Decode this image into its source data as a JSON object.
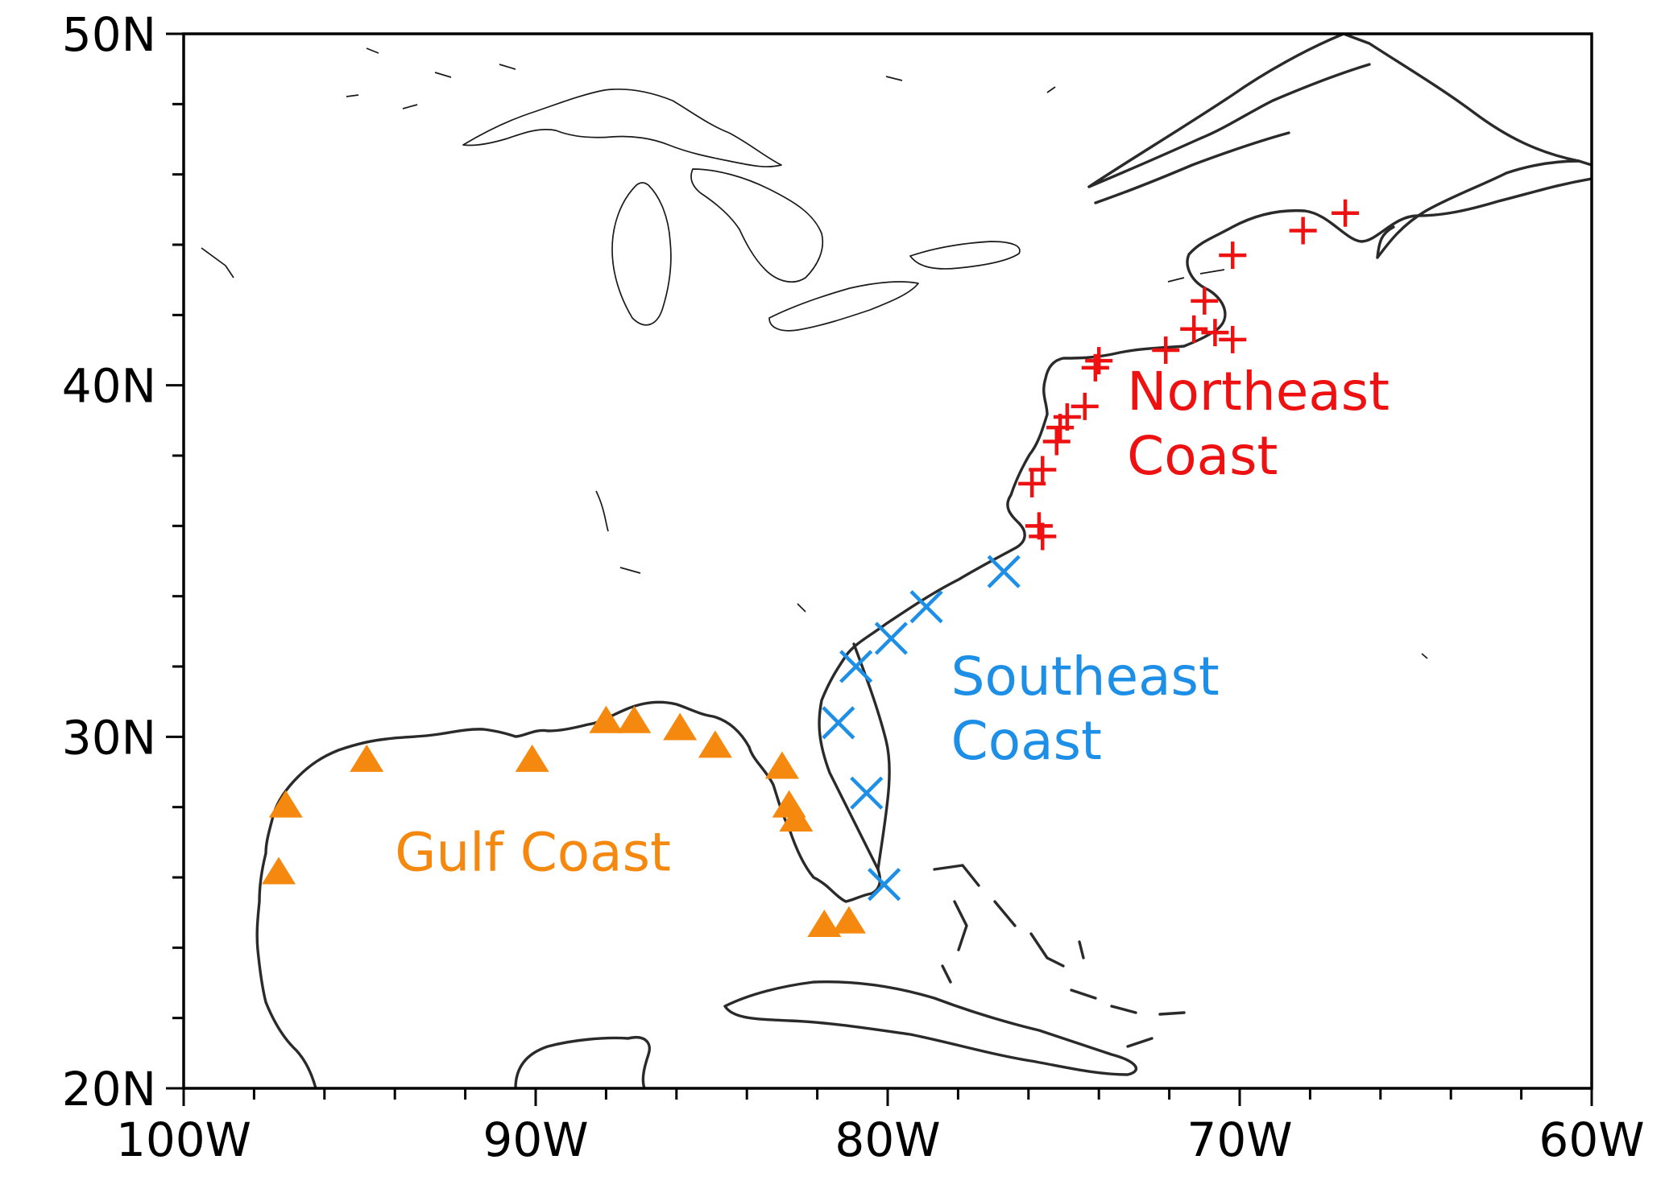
{
  "map": {
    "extent": {
      "lon": [
        -100,
        -60
      ],
      "lat": [
        20,
        50
      ]
    },
    "x_ticks": [
      {
        "lon": -100,
        "label": "100W"
      },
      {
        "lon": -90,
        "label": "90W"
      },
      {
        "lon": -80,
        "label": "80W"
      },
      {
        "lon": -70,
        "label": "70W"
      },
      {
        "lon": -60,
        "label": "60W"
      }
    ],
    "y_ticks": [
      {
        "lat": 20,
        "label": "20N"
      },
      {
        "lat": 30,
        "label": "30N"
      },
      {
        "lat": 40,
        "label": "40N"
      },
      {
        "lat": 50,
        "label": "50N"
      }
    ],
    "minor_tick_step_deg": 2,
    "regions": [
      {
        "id": "northeast",
        "label_lines": [
          "Northeast",
          "Coast"
        ],
        "color": "#ee1111",
        "marker": "plus",
        "label_anchor": {
          "lon": -73.2,
          "lat": 39.3
        },
        "stations": [
          [
            -67.0,
            44.9
          ],
          [
            -68.2,
            44.4
          ],
          [
            -70.2,
            43.7
          ],
          [
            -71.0,
            42.4
          ],
          [
            -71.3,
            41.6
          ],
          [
            -70.7,
            41.5
          ],
          [
            -70.2,
            41.3
          ],
          [
            -72.1,
            41.0
          ],
          [
            -74.0,
            40.7
          ],
          [
            -74.1,
            40.5
          ],
          [
            -74.4,
            39.4
          ],
          [
            -74.9,
            39.1
          ],
          [
            -75.1,
            38.8
          ],
          [
            -75.2,
            38.4
          ],
          [
            -75.6,
            37.6
          ],
          [
            -75.9,
            37.2
          ],
          [
            -75.7,
            36.0
          ],
          [
            -75.6,
            35.7
          ]
        ]
      },
      {
        "id": "southeast",
        "label_lines": [
          "Southeast",
          "Coast"
        ],
        "color": "#1e8fe6",
        "marker": "x",
        "label_anchor": {
          "lon": -78.2,
          "lat": 31.2
        },
        "stations": [
          [
            -76.7,
            34.7
          ],
          [
            -78.9,
            33.7
          ],
          [
            -79.9,
            32.8
          ],
          [
            -80.9,
            32.0
          ],
          [
            -81.4,
            30.4
          ],
          [
            -80.6,
            28.4
          ],
          [
            -80.1,
            25.8
          ]
        ]
      },
      {
        "id": "gulf",
        "label_lines": [
          "Gulf Coast"
        ],
        "color": "#f5880e",
        "marker": "triangle",
        "label_anchor": {
          "lon": -94.0,
          "lat": 26.2
        },
        "stations": [
          [
            -97.3,
            26.1
          ],
          [
            -97.1,
            28.0
          ],
          [
            -94.8,
            29.3
          ],
          [
            -90.1,
            29.3
          ],
          [
            -88.0,
            30.4
          ],
          [
            -87.2,
            30.4
          ],
          [
            -85.9,
            30.2
          ],
          [
            -84.9,
            29.7
          ],
          [
            -83.0,
            29.1
          ],
          [
            -82.8,
            28.0
          ],
          [
            -82.6,
            27.6
          ],
          [
            -81.8,
            24.6
          ],
          [
            -81.1,
            24.7
          ]
        ]
      }
    ]
  }
}
